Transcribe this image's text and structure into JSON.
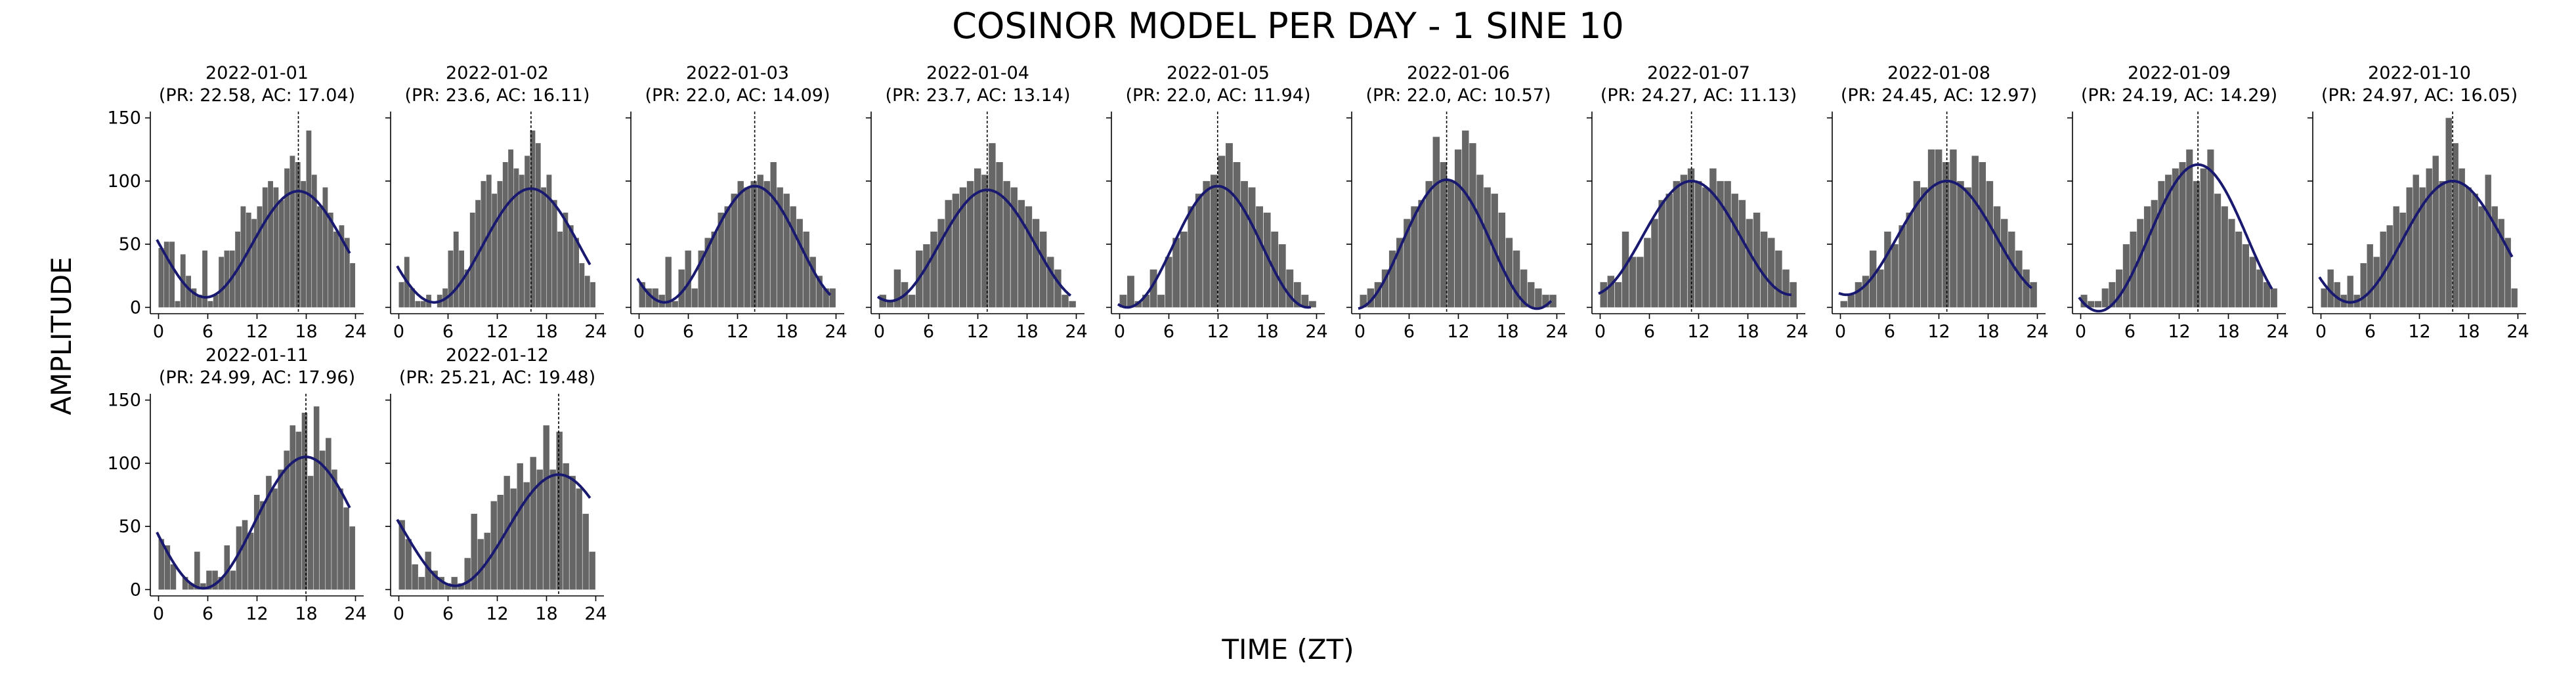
{
  "figure": {
    "title": "COSINOR MODEL PER DAY - 1 SINE 10",
    "xlabel": "TIME (ZT)",
    "ylabel": "AMPLITUDE"
  },
  "chart_data": {
    "type": "bar",
    "description_free": true,
    "shared_axes": {
      "xlim": [
        -1,
        25
      ],
      "ylim": [
        -5,
        155
      ],
      "xticks": [
        0,
        6,
        12,
        18,
        24
      ],
      "yticks": [
        0,
        50,
        100,
        150
      ]
    },
    "colors": {
      "bars": "#666666",
      "curve": "#191970",
      "vline": "#000000"
    },
    "panels": [
      {
        "title": "2022-01-01",
        "subtitle": "(PR: 22.58, AC: 17.04)",
        "period": 22.58,
        "acrophase": 17.04,
        "mesor": 50,
        "amplitude": 42,
        "bars": [
          47,
          52,
          52,
          5,
          42,
          25,
          15,
          10,
          45,
          5,
          10,
          40,
          45,
          45,
          60,
          80,
          75,
          70,
          80,
          95,
          100,
          95,
          85,
          110,
          120,
          115,
          100,
          140,
          105,
          80,
          95,
          75,
          60,
          65,
          55,
          35
        ]
      },
      {
        "title": "2022-01-02",
        "subtitle": "(PR: 23.6, AC: 16.11)",
        "period": 23.6,
        "acrophase": 16.11,
        "mesor": 49,
        "amplitude": 45,
        "bars": [
          20,
          40,
          15,
          5,
          5,
          10,
          0,
          10,
          15,
          45,
          60,
          45,
          30,
          75,
          85,
          100,
          105,
          90,
          100,
          115,
          125,
          110,
          105,
          120,
          140,
          130,
          95,
          105,
          85,
          60,
          75,
          65,
          55,
          35,
          25,
          20
        ]
      },
      {
        "title": "2022-01-03",
        "subtitle": "(PR: 22.0, AC: 14.09)",
        "period": 22.0,
        "acrophase": 14.09,
        "mesor": 50,
        "amplitude": 46,
        "bars": [
          20,
          15,
          15,
          10,
          40,
          5,
          30,
          45,
          15,
          45,
          55,
          60,
          75,
          80,
          90,
          100,
          95,
          100,
          105,
          100,
          115,
          95,
          90,
          80,
          70,
          60,
          40,
          25,
          15,
          15
        ]
      },
      {
        "title": "2022-01-04",
        "subtitle": "(PR: 23.7, AC: 13.14)",
        "period": 23.7,
        "acrophase": 13.14,
        "mesor": 49,
        "amplitude": 44,
        "bars": [
          10,
          5,
          30,
          20,
          10,
          45,
          50,
          60,
          70,
          85,
          90,
          95,
          100,
          110,
          105,
          130,
          115,
          100,
          95,
          85,
          80,
          70,
          60,
          40,
          30,
          10,
          5
        ]
      },
      {
        "title": "2022-01-05",
        "subtitle": "(PR: 22.0, AC: 11.94)",
        "period": 22.0,
        "acrophase": 11.94,
        "mesor": 48,
        "amplitude": 48,
        "bars": [
          10,
          25,
          5,
          10,
          30,
          10,
          40,
          55,
          60,
          80,
          90,
          100,
          105,
          120,
          130,
          115,
          100,
          95,
          80,
          75,
          60,
          50,
          30,
          20,
          10,
          5
        ]
      },
      {
        "title": "2022-01-06",
        "subtitle": "(PR: 22.0, AC: 10.57)",
        "period": 22.0,
        "acrophase": 10.57,
        "mesor": 50,
        "amplitude": 51,
        "bars": [
          10,
          15,
          20,
          30,
          45,
          55,
          70,
          80,
          85,
          100,
          135,
          115,
          100,
          125,
          140,
          130,
          105,
          95,
          90,
          75,
          55,
          45,
          30,
          20,
          15,
          10,
          10
        ]
      },
      {
        "title": "2022-01-07",
        "subtitle": "(PR: 24.27, AC: 11.13)",
        "period": 24.27,
        "acrophase": 11.13,
        "mesor": 55,
        "amplitude": 45,
        "bars": [
          20,
          25,
          20,
          60,
          40,
          40,
          55,
          70,
          85,
          90,
          100,
          105,
          110,
          100,
          95,
          110,
          100,
          100,
          90,
          85,
          70,
          75,
          60,
          55,
          45,
          30,
          20
        ]
      },
      {
        "title": "2022-01-08",
        "subtitle": "(PR: 24.45, AC: 12.97)",
        "period": 24.45,
        "acrophase": 12.97,
        "mesor": 55,
        "amplitude": 45,
        "bars": [
          5,
          10,
          20,
          25,
          45,
          30,
          60,
          50,
          65,
          75,
          100,
          95,
          125,
          125,
          115,
          125,
          100,
          95,
          120,
          115,
          100,
          80,
          70,
          60,
          45,
          30,
          20
        ]
      },
      {
        "title": "2022-01-09",
        "subtitle": "(PR: 24.19, AC: 14.29)",
        "period": 24.19,
        "acrophase": 14.29,
        "mesor": 55,
        "amplitude": 58,
        "bars": [
          10,
          5,
          5,
          15,
          20,
          30,
          50,
          60,
          70,
          80,
          85,
          100,
          105,
          110,
          115,
          125,
          100,
          110,
          125,
          90,
          80,
          70,
          60,
          50,
          40,
          30,
          20,
          15
        ]
      },
      {
        "title": "2022-01-10",
        "subtitle": "(PR: 24.97, AC: 16.05)",
        "period": 24.97,
        "acrophase": 16.05,
        "mesor": 52,
        "amplitude": 48,
        "bars": [
          15,
          30,
          20,
          10,
          25,
          10,
          35,
          50,
          40,
          60,
          65,
          80,
          75,
          95,
          105,
          95,
          110,
          120,
          100,
          150,
          130,
          110,
          95,
          90,
          80,
          105,
          80,
          70,
          55,
          15
        ]
      },
      {
        "title": "2022-01-11",
        "subtitle": "(PR: 24.99, AC: 17.96)",
        "period": 24.99,
        "acrophase": 17.96,
        "mesor": 53,
        "amplitude": 52,
        "bars": [
          40,
          35,
          20,
          0,
          10,
          5,
          30,
          5,
          15,
          15,
          10,
          35,
          15,
          50,
          55,
          45,
          75,
          70,
          90,
          80,
          95,
          110,
          130,
          125,
          140,
          90,
          145,
          110,
          120,
          95,
          80,
          65,
          50
        ]
      },
      {
        "title": "2022-01-12",
        "subtitle": "(PR: 25.21, AC: 19.48)",
        "period": 25.21,
        "acrophase": 19.48,
        "mesor": 47,
        "amplitude": 44,
        "bars": [
          55,
          40,
          20,
          10,
          30,
          15,
          10,
          5,
          10,
          5,
          25,
          60,
          40,
          45,
          70,
          75,
          90,
          80,
          100,
          85,
          105,
          95,
          130,
          95,
          125,
          100,
          90,
          80,
          60,
          30
        ]
      }
    ]
  }
}
